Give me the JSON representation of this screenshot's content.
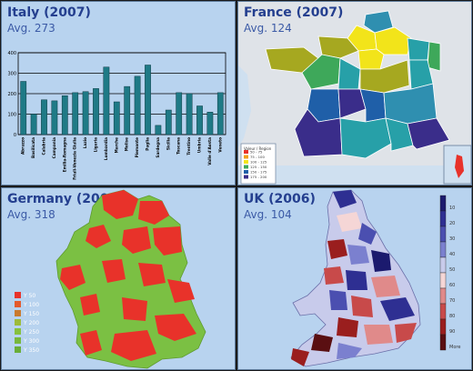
{
  "panels": {
    "italy": {
      "title": "Italy (2007)",
      "avg": "Avg. 273"
    },
    "france": {
      "title": "France (2007)",
      "avg": "Avg. 124"
    },
    "germany": {
      "title": "Germany (2007)",
      "avg": "Avg. 318"
    },
    "uk": {
      "title": "UK (2006)",
      "avg": "Avg. 104"
    }
  },
  "colors": {
    "panel_bg": "#b8d3ef",
    "title": "#243f8f",
    "bar": "#1f7a86",
    "germany_low": "#e84030",
    "germany_high": "#7bc043",
    "france_yellow": "#f2e41a",
    "france_olive": "#a6a820",
    "france_green": "#3ea85a",
    "france_teal": "#27a0a8",
    "france_blue": "#1f5fa8",
    "france_purple": "#3a2d8a",
    "uk_dark_blue": "#1b1a6e",
    "uk_dark_red": "#5a0f12"
  },
  "chart_data": [
    {
      "type": "bar",
      "title": "Italy (2007)",
      "subtitle": "Avg. 273",
      "categories": [
        "Abruzzo",
        "Basilicata",
        "Calabria",
        "Campania",
        "Emilia-Romagna",
        "Friuli-Venezia Giulia",
        "Lazio",
        "Liguria",
        "Lombardia",
        "Marche",
        "Molise",
        "Piemonte",
        "Puglia",
        "Sardegna",
        "Sicilia",
        "Toscana",
        "Trentino",
        "Umbria",
        "Valle d'Aosta",
        "Veneto"
      ],
      "values": [
        260,
        100,
        170,
        165,
        190,
        205,
        210,
        225,
        330,
        160,
        235,
        285,
        340,
        45,
        120,
        205,
        200,
        140,
        110,
        205
      ],
      "ylim": [
        0,
        400
      ],
      "yticks": [
        "0",
        "100",
        "200",
        "300",
        "400"
      ],
      "grid": true
    },
    {
      "type": "heatmap",
      "title": "France (2007)",
      "subtitle": "Avg. 124",
      "legend_title": "Valeur / Region",
      "legend": [
        "50 - 75",
        "75 - 100",
        "100 - 125",
        "125 - 150",
        "150 - 175",
        "175 - 200"
      ]
    },
    {
      "type": "heatmap",
      "title": "Germany (2007)",
      "subtitle": "Avg. 318",
      "legend": [
        "Y 50",
        "Y 100",
        "Y 150",
        "Y 200",
        "Y 250",
        "Y 300",
        "Y 350"
      ],
      "legend_colors": [
        "#e8322a",
        "#e45a2c",
        "#c97a2e",
        "#9dbb3a",
        "#86c13e",
        "#78b83c",
        "#6aae38"
      ]
    },
    {
      "type": "heatmap",
      "title": "UK (2006)",
      "subtitle": "Avg. 104",
      "scale_labels": [
        "10",
        "20",
        "30",
        "40",
        "50",
        "60",
        "70",
        "80",
        "90",
        "More"
      ],
      "scale_colors": [
        "#1b1a6e",
        "#2e2f92",
        "#4b4fb0",
        "#7b80cf",
        "#c8cbeb",
        "#f5d6d6",
        "#e08a8a",
        "#c84a4a",
        "#9a1e1e",
        "#5a0f12"
      ]
    }
  ]
}
